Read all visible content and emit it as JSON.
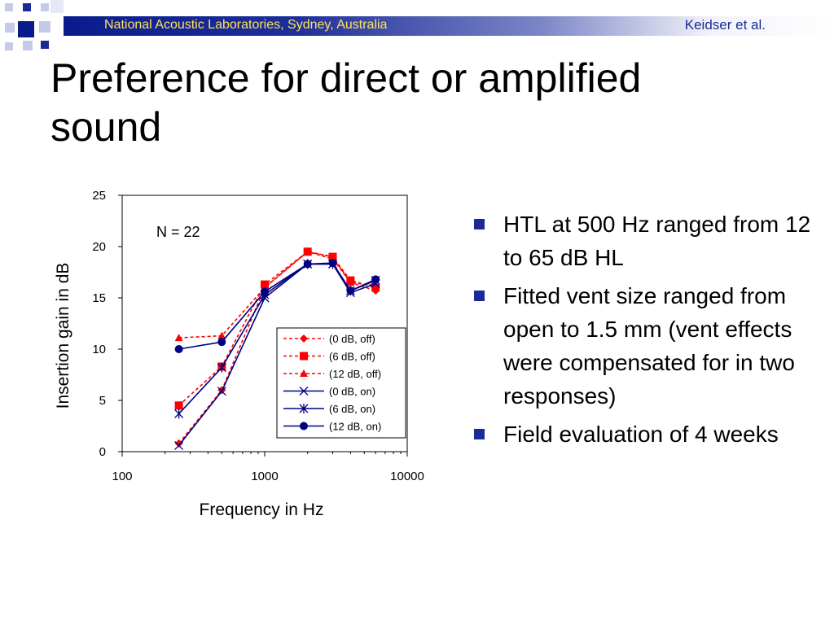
{
  "header": {
    "org": "National Acoustic Laboratories, Sydney, Australia",
    "author": "Keidser et al."
  },
  "title": {
    "line1": "Preference for direct or amplified",
    "line2": "sound"
  },
  "bullets": [
    {
      "text": "HTL at 500 Hz ranged from 12 to 65 dB HL"
    },
    {
      "text": "Fitted vent size ranged from open to 1.5 mm (vent effects were compensated for in two responses)"
    },
    {
      "text": "Field evaluation of 4 weeks"
    }
  ],
  "colors": {
    "header_text": "#ffe35a",
    "header_bar": "#0a1c8c",
    "bullet": "#1a2b98",
    "series_off": "#ff0000",
    "series_on": "#000080"
  },
  "chart_data": {
    "type": "line",
    "xscale": "log",
    "xlabel": "Frequency in Hz",
    "ylabel": "Insertion gain in dB",
    "xlim": [
      100,
      10000
    ],
    "ylim": [
      0,
      25
    ],
    "xticks": [
      "100",
      "1000",
      "10000"
    ],
    "yticks": [
      "0",
      "5",
      "10",
      "15",
      "20",
      "25"
    ],
    "annotation": "N = 22",
    "legend_position": "bottom-right",
    "x": [
      250,
      500,
      1000,
      2000,
      3000,
      4000,
      6000
    ],
    "series": [
      {
        "name": "(0 dB, off)",
        "style": "dashed",
        "marker": "diamond",
        "color": "#ff0000",
        "values": [
          0.8,
          6.0,
          16.0,
          19.5,
          18.8,
          16.5,
          15.7
        ]
      },
      {
        "name": "(6 dB, off)",
        "style": "dashed",
        "marker": "square",
        "color": "#ff0000",
        "values": [
          4.5,
          8.3,
          16.3,
          19.5,
          19.0,
          16.7,
          16.0
        ]
      },
      {
        "name": "(12 dB, off)",
        "style": "dashed",
        "marker": "triangle",
        "color": "#ff0000",
        "values": [
          11.1,
          11.3,
          16.0,
          19.5,
          19.0,
          16.5,
          16.2
        ]
      },
      {
        "name": "(0 dB, on)",
        "style": "solid",
        "marker": "x",
        "color": "#000080",
        "values": [
          0.6,
          5.9,
          15.0,
          18.3,
          18.3,
          15.5,
          16.4
        ]
      },
      {
        "name": "(6 dB, on)",
        "style": "solid",
        "marker": "star",
        "color": "#000080",
        "values": [
          3.7,
          8.2,
          15.3,
          18.3,
          18.3,
          15.7,
          16.7
        ]
      },
      {
        "name": "(12 dB, on)",
        "style": "solid",
        "marker": "circle",
        "color": "#000080",
        "values": [
          10.0,
          10.7,
          15.6,
          18.3,
          18.4,
          15.7,
          16.8
        ]
      }
    ]
  }
}
